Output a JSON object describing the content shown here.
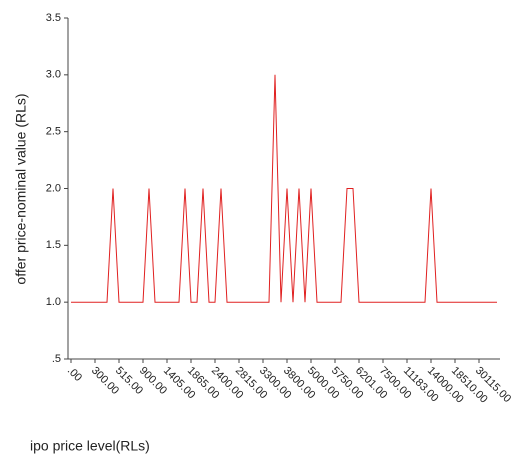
{
  "chart_data": {
    "type": "line",
    "x_label": "ipo price level(RLs)",
    "y_label": "offer price-nominal value (RLs)",
    "categories": [
      ".00",
      null,
      null,
      null,
      "300.00",
      null,
      null,
      null,
      "515.00",
      null,
      null,
      null,
      "900.00",
      null,
      null,
      null,
      "1405.00",
      null,
      null,
      null,
      "1865.00",
      null,
      null,
      null,
      "2400.00",
      null,
      null,
      null,
      "2815.00",
      null,
      null,
      null,
      "3300.00",
      null,
      null,
      null,
      "3800.00",
      null,
      null,
      null,
      "5000.00",
      null,
      null,
      null,
      "5750.00",
      null,
      null,
      null,
      "6201.00",
      null,
      null,
      null,
      "7500.00",
      null,
      null,
      null,
      "11183.00",
      null,
      null,
      null,
      "14000.00",
      null,
      null,
      null,
      "18510.00",
      null,
      null,
      null,
      "30115.00",
      null,
      null,
      null
    ],
    "series": [
      {
        "color": "#e02020",
        "values": [
          1,
          1,
          1,
          1,
          1,
          1,
          1,
          2,
          1,
          1,
          1,
          1,
          1,
          2,
          1,
          1,
          1,
          1,
          1,
          2,
          1,
          1,
          2,
          1,
          1,
          2,
          1,
          1,
          1,
          1,
          1,
          1,
          1,
          1,
          3,
          1,
          2,
          1,
          2,
          1,
          2,
          1,
          1,
          1,
          1,
          1,
          2,
          2,
          1,
          1,
          1,
          1,
          1,
          1,
          1,
          1,
          1,
          1,
          1,
          1,
          2,
          1,
          1,
          1,
          1,
          1,
          1,
          1,
          1,
          1,
          1,
          1
        ]
      }
    ],
    "ylim": [
      0.5,
      3.5
    ],
    "yticks": [
      {
        "value": 0.5,
        "label": ".5"
      },
      {
        "value": 1,
        "label": "1.0"
      },
      1.5,
      {
        "value": 2,
        "label": "2.0"
      },
      2.5,
      {
        "value": 3,
        "label": "3.0"
      },
      3.5
    ]
  }
}
